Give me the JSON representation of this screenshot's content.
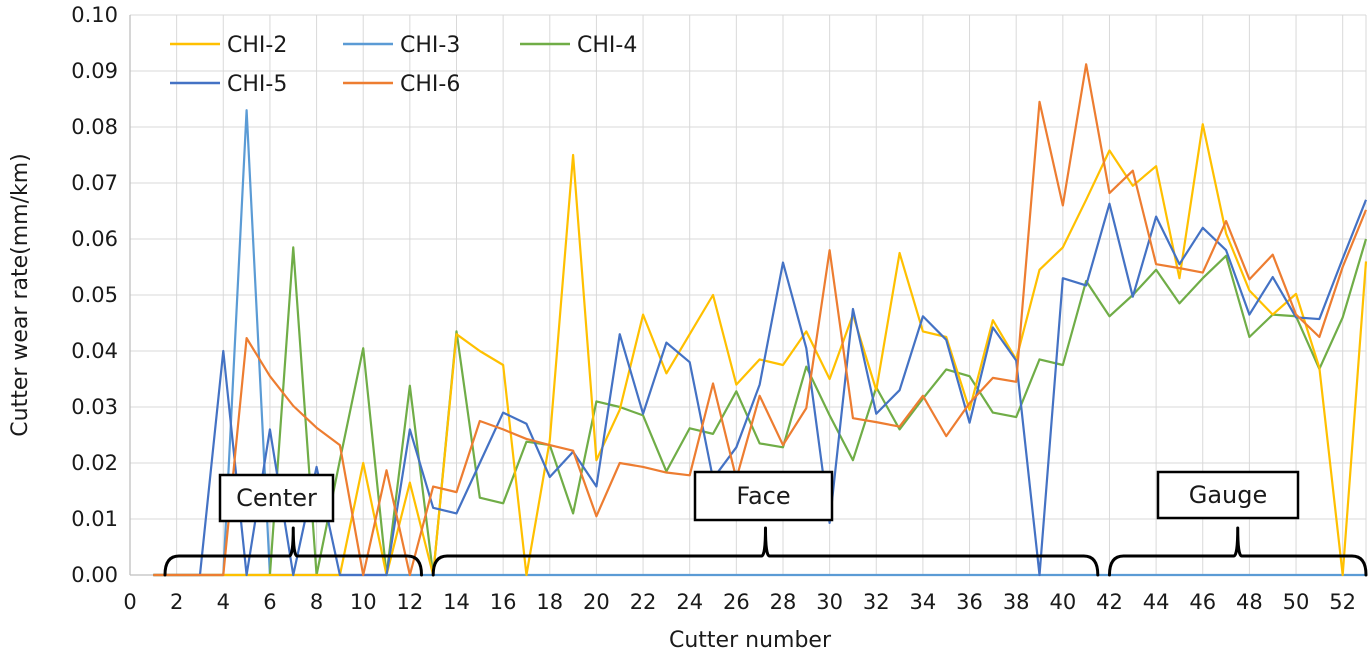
{
  "chart_data": {
    "type": "line",
    "title": "",
    "xlabel": "Cutter number",
    "ylabel": "Cutter wear rate(mm/km)",
    "xlim": [
      0,
      53
    ],
    "ylim": [
      0,
      0.1
    ],
    "x_ticks": [
      0,
      2,
      4,
      6,
      8,
      10,
      12,
      14,
      16,
      18,
      20,
      22,
      24,
      26,
      28,
      30,
      32,
      34,
      36,
      38,
      40,
      42,
      44,
      46,
      48,
      50,
      52
    ],
    "y_ticks": [
      "0.00",
      "0.01",
      "0.02",
      "0.03",
      "0.04",
      "0.05",
      "0.06",
      "0.07",
      "0.08",
      "0.09",
      "0.10"
    ],
    "grid": true,
    "legend_position": "top-left",
    "x": [
      1,
      2,
      3,
      4,
      5,
      6,
      7,
      8,
      9,
      10,
      11,
      12,
      13,
      14,
      15,
      16,
      17,
      18,
      19,
      20,
      21,
      22,
      23,
      24,
      25,
      26,
      27,
      28,
      29,
      30,
      31,
      32,
      33,
      34,
      35,
      36,
      37,
      38,
      39,
      40,
      41,
      42,
      43,
      44,
      45,
      46,
      47,
      48,
      49,
      50,
      51,
      52,
      53
    ],
    "series": [
      {
        "name": "CHI-2",
        "color": "#ffc000",
        "values": [
          0,
          0,
          0,
          0,
          0,
          0,
          0,
          0,
          0,
          0.02,
          0,
          0.0165,
          0,
          0.043,
          0.04,
          0.0375,
          0,
          0.024,
          0.075,
          0.0205,
          0.0295,
          0.0465,
          0.036,
          0.043,
          0.05,
          0.034,
          0.0385,
          0.0375,
          0.0435,
          0.035,
          0.0465,
          0.033,
          0.0575,
          0.0435,
          0.0425,
          0.0295,
          0.0455,
          0.0385,
          0.0545,
          0.0585,
          0.067,
          0.0758,
          0.0695,
          0.073,
          0.053,
          0.0805,
          0.061,
          0.0508,
          0.0465,
          0.0502,
          0.037,
          0,
          0.056
        ]
      },
      {
        "name": "CHI-3",
        "color": "#5b9bd5",
        "values": [
          0,
          0,
          0,
          0,
          0.083,
          0,
          0,
          0,
          0,
          0,
          0,
          0,
          0,
          0,
          0,
          0,
          0,
          0,
          0,
          0,
          0,
          0,
          0,
          0,
          0,
          0,
          0,
          0,
          0,
          0,
          0,
          0,
          0,
          0,
          0,
          0,
          0,
          0,
          0,
          0,
          0,
          0,
          0,
          0,
          0,
          0,
          0,
          0,
          0,
          0,
          0,
          0,
          0
        ]
      },
      {
        "name": "CHI-4",
        "color": "#70ad47",
        "values": [
          0,
          0,
          0,
          0,
          0,
          0,
          0.0585,
          0,
          0.0205,
          0.0405,
          0,
          0.0338,
          0,
          0.0435,
          0.0138,
          0.0128,
          0.0238,
          0.0232,
          0.011,
          0.031,
          0.03,
          0.0285,
          0.0185,
          0.0262,
          0.0252,
          0.0328,
          0.0235,
          0.0228,
          0.0372,
          0.0285,
          0.0205,
          0.0335,
          0.026,
          0.0315,
          0.0367,
          0.0355,
          0.029,
          0.0282,
          0.0385,
          0.0375,
          0.0525,
          0.0462,
          0.05,
          0.0545,
          0.0485,
          0.053,
          0.057,
          0.0425,
          0.0465,
          0.0462,
          0.0368,
          0.046,
          0.06
        ]
      },
      {
        "name": "CHI-5",
        "color": "#4472c4",
        "values": [
          0,
          0,
          0,
          0.04,
          0,
          0.026,
          0,
          0.0193,
          0,
          0,
          0,
          0.026,
          0.012,
          0.011,
          0.02,
          0.029,
          0.027,
          0.0175,
          0.022,
          0.0158,
          0.043,
          0.0288,
          0.0415,
          0.038,
          0.0172,
          0.0228,
          0.034,
          0.0558,
          0.0405,
          0.0093,
          0.0475,
          0.0288,
          0.033,
          0.0462,
          0.042,
          0.0272,
          0.0442,
          0.0383,
          0,
          0.053,
          0.0517,
          0.0663,
          0.0497,
          0.064,
          0.0555,
          0.062,
          0.058,
          0.0465,
          0.0532,
          0.046,
          0.0457,
          0.0565,
          0.067
        ]
      },
      {
        "name": "CHI-6",
        "color": "#ed7d31",
        "values": [
          0,
          0,
          0,
          0,
          0.0423,
          0.0355,
          0.0302,
          0.0263,
          0.0232,
          0,
          0.0187,
          0,
          0.0158,
          0.0148,
          0.0275,
          0.026,
          0.0243,
          0.0232,
          0.0222,
          0.0105,
          0.02,
          0.0193,
          0.0183,
          0.0178,
          0.0342,
          0.0172,
          0.032,
          0.0232,
          0.0298,
          0.058,
          0.028,
          0.0273,
          0.0265,
          0.032,
          0.0248,
          0.0307,
          0.0352,
          0.0345,
          0.0845,
          0.066,
          0.0912,
          0.0682,
          0.0722,
          0.0555,
          0.0548,
          0.054,
          0.0632,
          0.0528,
          0.0572,
          0.0465,
          0.0425,
          0.055,
          0.0652
        ]
      }
    ],
    "annotations": [
      {
        "label": "Center",
        "range": [
          1.5,
          12.5
        ]
      },
      {
        "label": "Face",
        "range": [
          13,
          41.5
        ]
      },
      {
        "label": "Gauge",
        "range": [
          42,
          53
        ]
      }
    ]
  }
}
